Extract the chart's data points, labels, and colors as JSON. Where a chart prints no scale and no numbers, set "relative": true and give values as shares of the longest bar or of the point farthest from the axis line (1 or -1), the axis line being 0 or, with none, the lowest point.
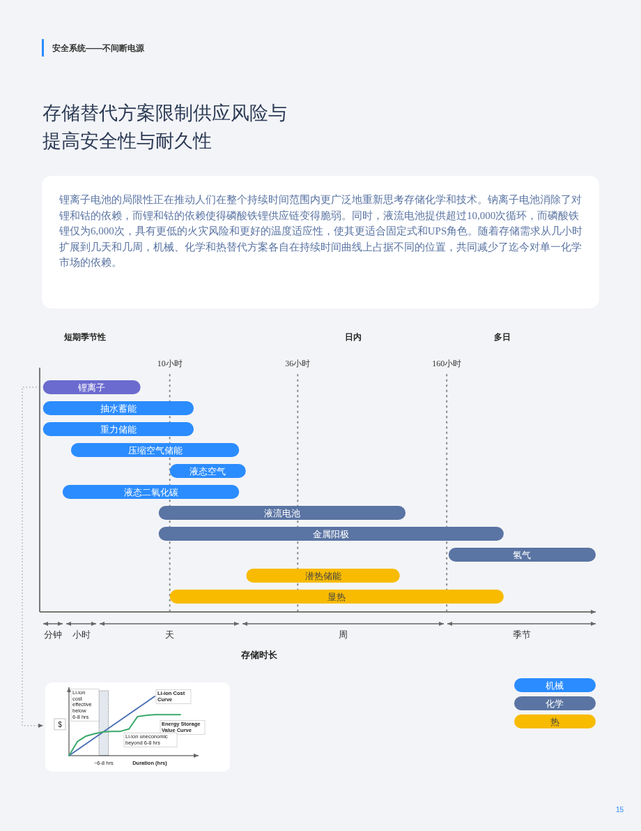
{
  "chart_data": [
    {
      "type": "bar",
      "orientation": "horizontal",
      "log": "x",
      "title": "存储替代方案限制供应风险与提高安全性与耐久性",
      "subtitle": "锂离子电池的局限性正在推动人们在整个持续时间范围内更广泛地重新思考存储化学和技术。钠离子电池消除了对锂和钴的依赖，而锂和钴的依赖使得磷酸铁锂供应链变得脆弱。同时，液流电池提供超过10,000次循环，而磷酸铁锂仅为6,000次，具有更低的火灾风险和更好的温度适应性，使其更适合固定式和UPS角色。随着存储需求从几小时扩展到几天和几周，机械、化学和热替代方案各自在持续时间曲线上占据不同的位置，共同减少了迄今对单一化学市场的依赖。",
      "xlabel": "存储时长",
      "xlim": [
        2.72,
        711
      ],
      "xticks": [
        {
          "value": 10,
          "label": "10小时"
        },
        {
          "value": 36,
          "label": "36小时"
        },
        {
          "value": 160,
          "label": "160小时"
        }
      ],
      "categories": [
        "锂离子",
        "抽水蓄能",
        "重力储能",
        "压缩空气储能",
        "液态空气",
        "液态二氧化碳",
        "液流电池",
        "金属阳极",
        "氢气",
        "潜热储能",
        "显热"
      ],
      "series": [
        {
          "color": "#6b6bcf",
          "base": [
            2.81,
            null,
            null,
            null,
            null,
            null,
            null,
            null,
            null,
            null,
            null
          ],
          "values": [
            4.65,
            null,
            null,
            null,
            null,
            null,
            null,
            null,
            null,
            null,
            null
          ]
        },
        {
          "name": "机械",
          "color": "#2b8cff",
          "base": [
            null,
            2.81,
            2.81,
            3.72,
            10,
            3.42,
            null,
            null,
            null,
            null,
            null
          ],
          "values": [
            null,
            9.9,
            9.9,
            16.3,
            11.4,
            16.6,
            null,
            null,
            null,
            null,
            null
          ]
        },
        {
          "name": "化学",
          "color": "#5a74a3",
          "base": [
            null,
            null,
            null,
            null,
            null,
            null,
            8.95,
            8.95,
            163,
            null,
            null
          ],
          "values": [
            null,
            null,
            null,
            null,
            null,
            null,
            97,
            274,
            548,
            null,
            null
          ]
        },
        {
          "name": "热",
          "color": "#f8bb00",
          "base": [
            null,
            null,
            null,
            null,
            null,
            null,
            null,
            null,
            null,
            21.5,
            10
          ],
          "values": [
            null,
            null,
            null,
            null,
            null,
            null,
            null,
            null,
            null,
            78.5,
            273
          ]
        }
      ],
      "ref_lines": [
        {
          "axis": "x",
          "value": 10,
          "line_style": "dotted"
        },
        {
          "axis": "x",
          "value": 36,
          "line_style": "dotted"
        },
        {
          "axis": "x",
          "value": 160,
          "line_style": "dotted"
        }
      ],
      "annotations": [
        "安全系统——不间断电源",
        "短期季节性",
        "日内",
        "多日",
        "15",
        "分钟",
        "小时",
        "天",
        "周",
        "季节"
      ],
      "legend": "bottom right"
    },
    {
      "type": "line",
      "relative": true,
      "xlabel": "Duration (hrs)",
      "ylabel": "$",
      "categories": [
        null,
        null,
        null,
        null,
        null,
        null,
        null,
        null,
        null,
        null,
        null,
        null,
        null,
        null
      ],
      "series": [
        {
          "name": "Li-ion Cost Curve",
          "color": "#4a6fb5",
          "values": [
            0,
            0.1,
            0.2,
            0.3,
            0.4,
            0.5,
            0.6,
            0.7,
            0.8,
            0.9,
            1.0,
            null,
            null,
            null
          ]
        },
        {
          "name": "Energy Storage Value Curve",
          "color": "#3aa86b",
          "values": [
            0,
            0.24,
            0.33,
            0.37,
            0.4,
            0.41,
            0.41,
            0.45,
            0.66,
            0.68,
            0.69,
            0.69,
            0.69,
            0.69
          ]
        }
      ],
      "annotations": [
        "Li-ion cost effective below 6-8 hrs",
        "Li-ion uneconomic beyond 6-8 hrs",
        "~6-8 hrs"
      ]
    }
  ]
}
